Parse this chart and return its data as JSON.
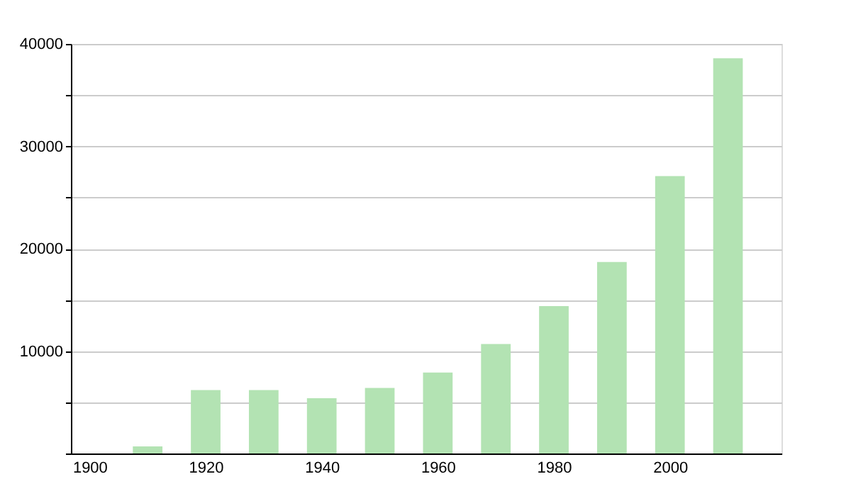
{
  "chart_data": {
    "type": "bar",
    "x": [
      1910,
      1920,
      1930,
      1940,
      1950,
      1960,
      1970,
      1980,
      1990,
      2000,
      2010
    ],
    "values": [
      700,
      6200,
      6200,
      5400,
      6400,
      7900,
      10700,
      14400,
      18700,
      27100,
      38600
    ],
    "color": "#b3e3b3",
    "xlim": [
      1898,
      2018
    ],
    "xticks": [
      1900,
      1920,
      1940,
      1960,
      1980,
      2000
    ],
    "ylim": [
      0,
      40000
    ],
    "yticks": [
      {
        "value": 0,
        "label": null
      },
      {
        "value": 5000,
        "label": null
      },
      10000,
      {
        "value": 15000,
        "label": null
      },
      20000,
      {
        "value": 25000,
        "label": null
      },
      30000,
      {
        "value": 35000,
        "label": null
      },
      40000
    ],
    "grid": "y"
  }
}
